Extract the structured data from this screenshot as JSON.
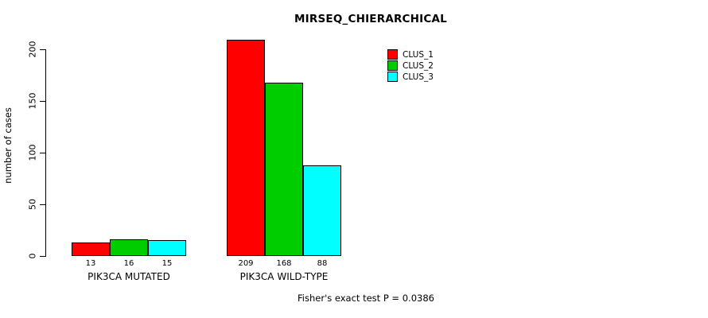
{
  "chart_data": {
    "type": "bar",
    "title": "MIRSEQ_CHIERARCHICAL",
    "ylabel": "number of cases",
    "xlabel": "",
    "categories": [
      "PIK3CA MUTATED",
      "PIK3CA WILD-TYPE"
    ],
    "series": [
      {
        "name": "CLUS_1",
        "color": "#FF0000",
        "values": [
          13,
          209
        ]
      },
      {
        "name": "CLUS_2",
        "color": "#00CD00",
        "values": [
          16,
          168
        ]
      },
      {
        "name": "CLUS_3",
        "color": "#00FFFF",
        "values": [
          15,
          88
        ]
      }
    ],
    "yticks": [
      0,
      50,
      100,
      150,
      200
    ],
    "ylim": [
      0,
      220
    ],
    "grid": false,
    "legend_position": "top-right",
    "bar_value_labels": [
      [
        "13",
        "16",
        "15"
      ],
      [
        "209",
        "168",
        "88"
      ]
    ],
    "annotation": "Fisher's exact test P = 0.0386"
  }
}
